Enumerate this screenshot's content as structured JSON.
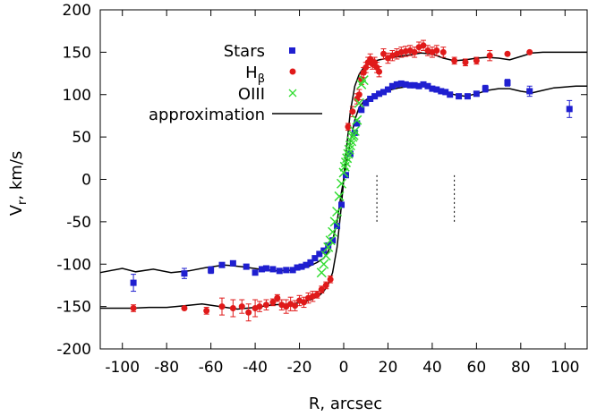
{
  "chart_data": {
    "type": "scatter",
    "title": "",
    "xlabel": "R, arcsec",
    "ylabel_main": "V",
    "ylabel_sub": "r",
    "ylabel_rest": ", km/s",
    "xlim": [
      -110,
      110
    ],
    "ylim": [
      -200,
      200
    ],
    "xticks": [
      -100,
      -80,
      -60,
      -40,
      -20,
      0,
      20,
      40,
      60,
      80,
      100
    ],
    "yticks": [
      -200,
      -150,
      -100,
      -50,
      0,
      50,
      100,
      150,
      200
    ],
    "grid": false,
    "legend_position": "top-left",
    "legend": [
      {
        "main": "Stars",
        "sub": ""
      },
      {
        "main": "H",
        "sub": "β"
      },
      {
        "main": "OIII",
        "sub": ""
      },
      {
        "main": "approximation",
        "sub": ""
      }
    ],
    "colors": {
      "stars": "#1f1fd0",
      "hbeta": "#e01a1a",
      "oiii": "#33dd33",
      "approximation": "#000000"
    },
    "series": [
      {
        "name": "Stars",
        "marker": "square",
        "points": [
          [
            -95,
            -122,
            10
          ],
          [
            -72,
            -111,
            6
          ],
          [
            -60,
            -107,
            4
          ],
          [
            -55,
            -101,
            0
          ],
          [
            -50,
            -99,
            0
          ],
          [
            -44,
            -103,
            0
          ],
          [
            -40,
            -110,
            0
          ],
          [
            -37,
            -106,
            0
          ],
          [
            -35,
            -105,
            0
          ],
          [
            -32,
            -106,
            0
          ],
          [
            -29,
            -108,
            0
          ],
          [
            -26,
            -107,
            0
          ],
          [
            -23,
            -107,
            0
          ],
          [
            -21,
            -104,
            0
          ],
          [
            -19,
            -103,
            0
          ],
          [
            -17,
            -101,
            0
          ],
          [
            -15,
            -98,
            0
          ],
          [
            -13,
            -93,
            0
          ],
          [
            -11,
            -88,
            0
          ],
          [
            -9,
            -84,
            0
          ],
          [
            -7,
            -78,
            0
          ],
          [
            -5,
            -72,
            0
          ],
          [
            -3,
            -55,
            0
          ],
          [
            -1,
            -30,
            0
          ],
          [
            1,
            5,
            0
          ],
          [
            3,
            30,
            0
          ],
          [
            5,
            55,
            0
          ],
          [
            6,
            66,
            0
          ],
          [
            8,
            82,
            0
          ],
          [
            10,
            90,
            0
          ],
          [
            12,
            95,
            0
          ],
          [
            14,
            98,
            0
          ],
          [
            16,
            101,
            0
          ],
          [
            18,
            103,
            0
          ],
          [
            20,
            106,
            0
          ],
          [
            22,
            110,
            0
          ],
          [
            24,
            112,
            0
          ],
          [
            26,
            113,
            0
          ],
          [
            28,
            112,
            0
          ],
          [
            30,
            111,
            0
          ],
          [
            32,
            111,
            0
          ],
          [
            34,
            110,
            0
          ],
          [
            36,
            112,
            0
          ],
          [
            38,
            110,
            0
          ],
          [
            40,
            107,
            0
          ],
          [
            42,
            106,
            0
          ],
          [
            44,
            104,
            0
          ],
          [
            46,
            103,
            0
          ],
          [
            48,
            100,
            0
          ],
          [
            52,
            98,
            0
          ],
          [
            56,
            98,
            0
          ],
          [
            60,
            101,
            0
          ],
          [
            64,
            107,
            4
          ],
          [
            74,
            114,
            4
          ],
          [
            84,
            104,
            6
          ],
          [
            102,
            83,
            10
          ]
        ]
      },
      {
        "name": "Hβ",
        "marker": "circle",
        "points": [
          [
            -95,
            -152,
            4
          ],
          [
            -72,
            -152,
            0
          ],
          [
            -62,
            -155,
            4
          ],
          [
            -55,
            -150,
            10
          ],
          [
            -50,
            -152,
            10
          ],
          [
            -46,
            -150,
            8
          ],
          [
            -43,
            -157,
            10
          ],
          [
            -40,
            -152,
            10
          ],
          [
            -38,
            -150,
            6
          ],
          [
            -35,
            -148,
            6
          ],
          [
            -32,
            -145,
            4
          ],
          [
            -30,
            -140,
            4
          ],
          [
            -28,
            -148,
            6
          ],
          [
            -26,
            -150,
            8
          ],
          [
            -24,
            -147,
            8
          ],
          [
            -22,
            -149,
            6
          ],
          [
            -20,
            -143,
            6
          ],
          [
            -18,
            -145,
            6
          ],
          [
            -16,
            -140,
            6
          ],
          [
            -14,
            -138,
            6
          ],
          [
            -12,
            -136,
            4
          ],
          [
            -10,
            -130,
            4
          ],
          [
            -8,
            -125,
            4
          ],
          [
            -6,
            -118,
            4
          ],
          [
            2,
            62,
            4
          ],
          [
            4,
            80,
            6
          ],
          [
            6,
            95,
            6
          ],
          [
            7,
            100,
            6
          ],
          [
            8,
            118,
            6
          ],
          [
            9,
            126,
            6
          ],
          [
            10,
            132,
            6
          ],
          [
            11,
            138,
            6
          ],
          [
            12,
            142,
            6
          ],
          [
            13,
            136,
            6
          ],
          [
            14,
            138,
            6
          ],
          [
            15,
            132,
            6
          ],
          [
            16,
            127,
            6
          ],
          [
            18,
            148,
            6
          ],
          [
            20,
            143,
            6
          ],
          [
            22,
            146,
            6
          ],
          [
            24,
            148,
            6
          ],
          [
            26,
            150,
            6
          ],
          [
            28,
            151,
            6
          ],
          [
            30,
            152,
            6
          ],
          [
            32,
            150,
            6
          ],
          [
            34,
            156,
            6
          ],
          [
            36,
            158,
            6
          ],
          [
            38,
            152,
            6
          ],
          [
            40,
            150,
            6
          ],
          [
            42,
            152,
            6
          ],
          [
            45,
            150,
            6
          ],
          [
            50,
            140,
            4
          ],
          [
            55,
            138,
            4
          ],
          [
            60,
            140,
            4
          ],
          [
            66,
            146,
            6
          ],
          [
            74,
            148,
            0
          ],
          [
            84,
            150,
            0
          ]
        ]
      },
      {
        "name": "OIII",
        "marker": "cross",
        "points": [
          [
            -10,
            -110,
            0
          ],
          [
            -9,
            -100,
            0
          ],
          [
            -8,
            -90,
            0
          ],
          [
            -7,
            -80,
            0
          ],
          [
            -6,
            -72,
            0
          ],
          [
            -5,
            -62,
            0
          ],
          [
            -4,
            -50,
            0
          ],
          [
            -3,
            -38,
            0
          ],
          [
            -2,
            -20,
            0
          ],
          [
            -1,
            -5,
            0
          ],
          [
            0,
            8,
            0
          ],
          [
            0.5,
            15,
            0
          ],
          [
            1,
            20,
            0
          ],
          [
            1.5,
            25,
            0
          ],
          [
            2,
            30,
            0
          ],
          [
            2.5,
            35,
            0
          ],
          [
            3,
            40,
            0
          ],
          [
            3.5,
            45,
            0
          ],
          [
            4,
            50,
            0
          ],
          [
            4.5,
            52,
            0
          ],
          [
            5,
            57,
            0
          ],
          [
            6,
            70,
            0
          ],
          [
            7,
            90,
            0
          ],
          [
            8,
            112,
            0
          ],
          [
            9,
            117,
            0
          ]
        ]
      }
    ],
    "curves": [
      {
        "name": "approximation",
        "points": [
          [
            -110,
            -110
          ],
          [
            -100,
            -105
          ],
          [
            -94,
            -109
          ],
          [
            -86,
            -106
          ],
          [
            -78,
            -110
          ],
          [
            -70,
            -108
          ],
          [
            -62,
            -104
          ],
          [
            -54,
            -101
          ],
          [
            -46,
            -103
          ],
          [
            -38,
            -106
          ],
          [
            -30,
            -108
          ],
          [
            -22,
            -107
          ],
          [
            -16,
            -103
          ],
          [
            -12,
            -98
          ],
          [
            -9,
            -93
          ],
          [
            -7,
            -85
          ],
          [
            -5,
            -72
          ],
          [
            -3,
            -50
          ],
          [
            -1,
            -15
          ],
          [
            0,
            0
          ],
          [
            1,
            15
          ],
          [
            3,
            45
          ],
          [
            5,
            70
          ],
          [
            7,
            85
          ],
          [
            9,
            92
          ],
          [
            12,
            97
          ],
          [
            16,
            101
          ],
          [
            20,
            105
          ],
          [
            25,
            108
          ],
          [
            30,
            110
          ],
          [
            35,
            111
          ],
          [
            40,
            108
          ],
          [
            45,
            104
          ],
          [
            50,
            100
          ],
          [
            55,
            98
          ],
          [
            60,
            101
          ],
          [
            65,
            105
          ],
          [
            70,
            107
          ],
          [
            75,
            107
          ],
          [
            80,
            104
          ],
          [
            85,
            102
          ],
          [
            90,
            105
          ],
          [
            95,
            108
          ],
          [
            100,
            109
          ],
          [
            105,
            110
          ],
          [
            110,
            110
          ]
        ]
      },
      {
        "name": "approximation",
        "points": [
          [
            -110,
            -152
          ],
          [
            -96,
            -152
          ],
          [
            -88,
            -151
          ],
          [
            -80,
            -151
          ],
          [
            -72,
            -149
          ],
          [
            -64,
            -147
          ],
          [
            -56,
            -150
          ],
          [
            -48,
            -153
          ],
          [
            -40,
            -151
          ],
          [
            -32,
            -148
          ],
          [
            -24,
            -147
          ],
          [
            -18,
            -145
          ],
          [
            -14,
            -141
          ],
          [
            -11,
            -137
          ],
          [
            -9,
            -132
          ],
          [
            -7,
            -124
          ],
          [
            -5,
            -110
          ],
          [
            -3,
            -80
          ],
          [
            -1,
            -30
          ],
          [
            0,
            0
          ],
          [
            1,
            30
          ],
          [
            3,
            80
          ],
          [
            5,
            110
          ],
          [
            7,
            124
          ],
          [
            9,
            132
          ],
          [
            12,
            138
          ],
          [
            16,
            141
          ],
          [
            20,
            143
          ],
          [
            25,
            145
          ],
          [
            30,
            147
          ],
          [
            35,
            149
          ],
          [
            40,
            148
          ],
          [
            45,
            143
          ],
          [
            50,
            140
          ],
          [
            55,
            141
          ],
          [
            60,
            143
          ],
          [
            65,
            144
          ],
          [
            70,
            143
          ],
          [
            75,
            141
          ],
          [
            80,
            145
          ],
          [
            85,
            149
          ],
          [
            90,
            150
          ],
          [
            95,
            150
          ],
          [
            100,
            150
          ],
          [
            110,
            150
          ]
        ]
      }
    ],
    "markers": [
      {
        "x": 15,
        "y_from": -50,
        "y_to": 5
      },
      {
        "x": 50,
        "y_from": -50,
        "y_to": 5
      }
    ]
  }
}
